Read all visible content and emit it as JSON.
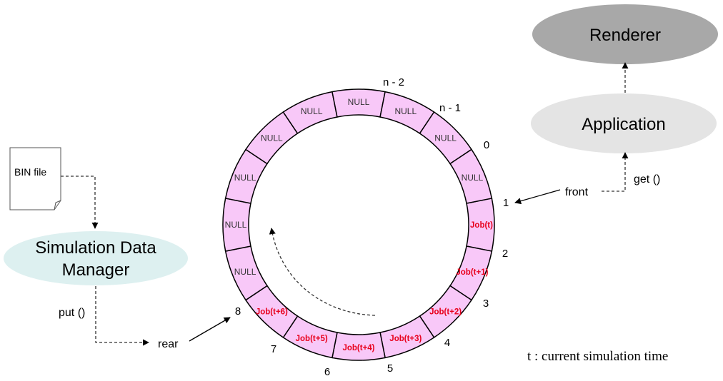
{
  "colors": {
    "slot_fill": "#f8c8f8",
    "renderer_fill": "#a8a8a8",
    "application_fill": "#e4e4e4",
    "manager_fill": "#ddf0f0",
    "job_text": "#e8001c"
  },
  "buffer": {
    "slots": [
      {
        "label": "Job(t)",
        "kind": "job"
      },
      {
        "label": "Job(t+1)",
        "kind": "job"
      },
      {
        "label": "Job(t+2)",
        "kind": "job"
      },
      {
        "label": "Job(t+3)",
        "kind": "job"
      },
      {
        "label": "Job(t+4)",
        "kind": "job"
      },
      {
        "label": "Job(t+5)",
        "kind": "job"
      },
      {
        "label": "Job(t+6)",
        "kind": "job"
      },
      {
        "label": "NULL",
        "kind": "null"
      },
      {
        "label": "NULL",
        "kind": "null"
      },
      {
        "label": "NULL",
        "kind": "null"
      },
      {
        "label": "NULL",
        "kind": "null"
      },
      {
        "label": "NULL",
        "kind": "null"
      },
      {
        "label": "NULL",
        "kind": "null"
      },
      {
        "label": "NULL",
        "kind": "null"
      },
      {
        "label": "NULL",
        "kind": "null"
      },
      {
        "label": "NULL",
        "kind": "null"
      }
    ],
    "indices": [
      "1",
      "2",
      "3",
      "4",
      "5",
      "6",
      "7",
      "8",
      "n - 2",
      "n - 1",
      "0"
    ]
  },
  "nodes": {
    "renderer": "Renderer",
    "application": "Application",
    "manager_line1": "Simulation Data",
    "manager_line2": "Manager",
    "bin_file": "BIN file"
  },
  "labels": {
    "front": "front",
    "rear": "rear",
    "get": "get ()",
    "put": "put ()",
    "legend": "t : current simulation time"
  }
}
